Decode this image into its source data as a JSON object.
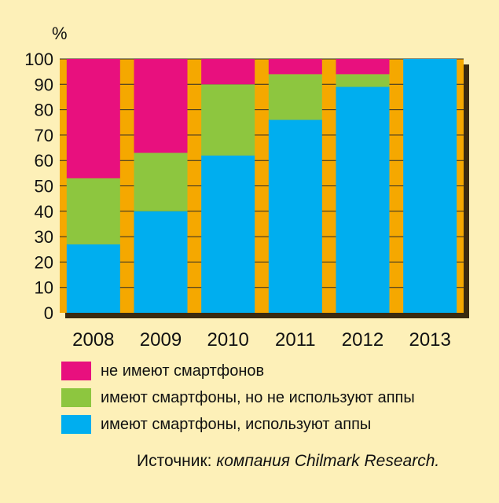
{
  "chart_data": {
    "type": "bar",
    "stacked": true,
    "unit_label": "%",
    "ylim": [
      0,
      100
    ],
    "yticks": [
      0,
      10,
      20,
      30,
      40,
      50,
      60,
      70,
      80,
      90,
      100
    ],
    "categories": [
      "2008",
      "2009",
      "2010",
      "2011",
      "2012",
      "2013"
    ],
    "series": [
      {
        "name": "имеют смартфоны, используют аппы",
        "color": "#00aeef",
        "values": [
          27,
          40,
          62,
          76,
          89,
          100
        ]
      },
      {
        "name": "имеют смартфоны, но не используют аппы",
        "color": "#8dc63f",
        "values": [
          26,
          23,
          28,
          18,
          5,
          0
        ]
      },
      {
        "name": "не имеют смартфонов",
        "color": "#e8107e",
        "values": [
          47,
          37,
          10,
          6,
          6,
          0
        ]
      }
    ],
    "legend_order": [
      2,
      1,
      0
    ],
    "frame_color": "#f5a800",
    "legend_placement": "bottom"
  },
  "source": {
    "prefix": "Источник:",
    "text": "компания Chilmark Research."
  }
}
